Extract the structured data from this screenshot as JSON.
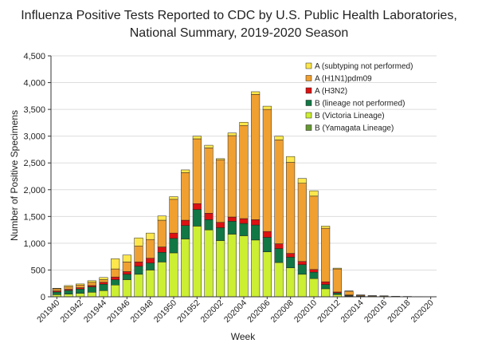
{
  "chart_data": {
    "type": "bar",
    "stacked": true,
    "title_line1": "Influenza Positive Tests Reported to CDC by U.S. Public Health Laboratories,",
    "title_line2": "National Summary, 2019-2020 Season",
    "xlabel": "Week",
    "ylabel": "Number of Positive Specimens",
    "ylim": [
      0,
      4500
    ],
    "yticks": [
      "0",
      "500",
      "1,000",
      "1,500",
      "2,000",
      "2,500",
      "3,000",
      "3,500",
      "4,000",
      "4,500"
    ],
    "categories": [
      "201940",
      "201941",
      "201942",
      "201943",
      "201944",
      "201945",
      "201946",
      "201947",
      "201948",
      "201949",
      "201950",
      "201951",
      "201952",
      "202001",
      "202002",
      "202003",
      "202004",
      "202005",
      "202006",
      "202007",
      "202008",
      "202009",
      "202010",
      "202011",
      "202012",
      "202013",
      "202014",
      "202015",
      "202016",
      "202017",
      "202018",
      "202019",
      "202020"
    ],
    "tick_labels": [
      "201940",
      "201942",
      "201944",
      "201946",
      "201948",
      "201950",
      "201952",
      "202002",
      "202004",
      "202006",
      "202008",
      "202010",
      "202012",
      "202014",
      "202016",
      "202018",
      "202020"
    ],
    "legend_position": "top-right",
    "colors": {
      "b_yamagata": "#669933",
      "b_victoria": "#ccee33",
      "b_lineage_np": "#117744",
      "a_h3n2": "#dd1111",
      "a_h1n1": "#f0a030",
      "a_subtyping_np": "#fde74c"
    },
    "series": [
      {
        "key": "b_yamagata",
        "name": "B (Yamagata Lineage)",
        "values": [
          0,
          0,
          0,
          0,
          0,
          0,
          0,
          0,
          0,
          0,
          0,
          0,
          0,
          0,
          0,
          0,
          0,
          0,
          0,
          0,
          0,
          0,
          0,
          0,
          0,
          0,
          0,
          0,
          0,
          0,
          0,
          0,
          0
        ]
      },
      {
        "key": "b_victoria",
        "name": "B (Victoria Lineage)",
        "values": [
          40,
          50,
          65,
          85,
          115,
          220,
          320,
          420,
          500,
          650,
          820,
          1080,
          1320,
          1250,
          1050,
          1170,
          1140,
          1060,
          840,
          640,
          540,
          420,
          340,
          150,
          40,
          12,
          5,
          3,
          2,
          1,
          0,
          0,
          0
        ]
      },
      {
        "key": "b_lineage_np",
        "name": "B (lineage not performed)",
        "values": [
          50,
          70,
          80,
          100,
          120,
          100,
          100,
          150,
          130,
          180,
          270,
          250,
          310,
          190,
          240,
          240,
          230,
          280,
          270,
          260,
          200,
          180,
          120,
          80,
          30,
          12,
          5,
          3,
          2,
          1,
          0,
          0,
          0
        ]
      },
      {
        "key": "a_h3n2",
        "name": "A (H3N2)",
        "values": [
          20,
          20,
          25,
          25,
          35,
          50,
          50,
          80,
          90,
          100,
          100,
          100,
          110,
          120,
          100,
          80,
          90,
          100,
          110,
          90,
          70,
          60,
          50,
          50,
          20,
          10,
          5,
          3,
          2,
          1,
          0,
          0,
          0
        ]
      },
      {
        "key": "a_h1n1",
        "name": "A (H1N1)pdm09",
        "values": [
          40,
          50,
          50,
          60,
          50,
          150,
          180,
          300,
          350,
          500,
          630,
          890,
          1210,
          1220,
          1170,
          1520,
          1740,
          2340,
          2280,
          1940,
          1700,
          1460,
          1370,
          1000,
          430,
          70,
          15,
          10,
          10,
          5,
          5,
          3,
          2
        ]
      },
      {
        "key": "a_subtyping_np",
        "name": "A (subtyping not performed)",
        "values": [
          10,
          20,
          20,
          30,
          40,
          190,
          130,
          150,
          120,
          80,
          50,
          50,
          50,
          50,
          20,
          50,
          60,
          50,
          60,
          70,
          110,
          90,
          100,
          40,
          15,
          6,
          5,
          3,
          2,
          1,
          1,
          1,
          1
        ]
      }
    ]
  }
}
